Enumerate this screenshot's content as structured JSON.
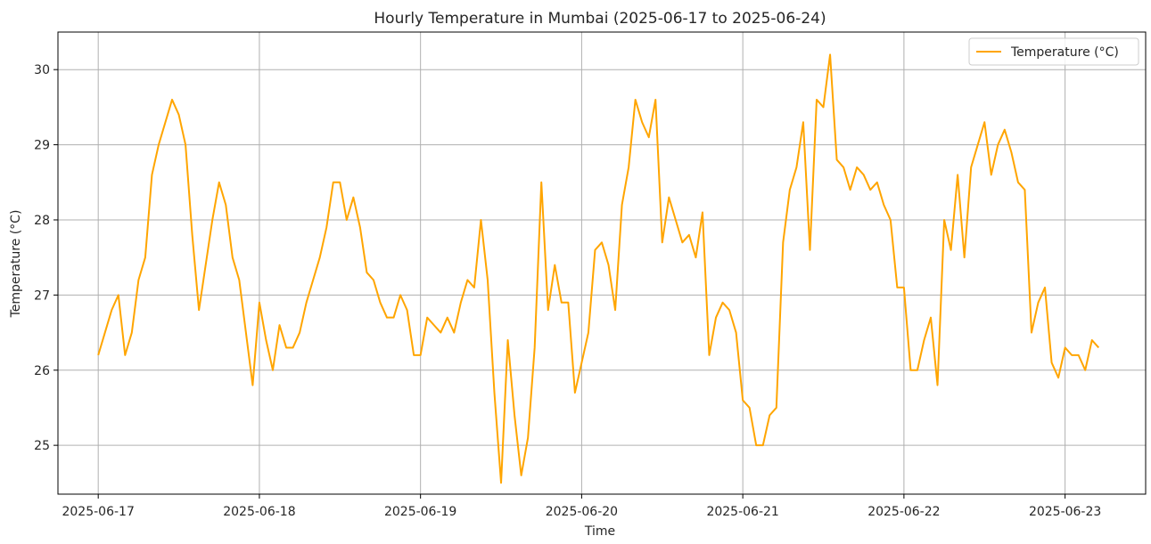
{
  "chart_data": {
    "type": "line",
    "title": "Hourly Temperature in Mumbai (2025-06-17 to 2025-06-24)",
    "xlabel": "Time",
    "ylabel": "Temperature (°C)",
    "x_tick_labels": [
      "2025-06-17",
      "2025-06-18",
      "2025-06-19",
      "2025-06-20",
      "2025-06-21",
      "2025-06-22",
      "2025-06-23"
    ],
    "y_ticks": [
      25,
      26,
      27,
      28,
      29,
      30
    ],
    "ylim": [
      24.35,
      30.5
    ],
    "xlim": [
      "2025-06-16 18:00",
      "2025-06-23 12:00"
    ],
    "x_step_hours": 1,
    "grid": true,
    "legend_position": "top-right",
    "series": [
      {
        "name": "Temperature (°C)",
        "color": "#ffa500",
        "start": "2025-06-17 00:00",
        "values": [
          26.2,
          26.5,
          26.8,
          27.0,
          26.2,
          26.5,
          27.2,
          27.5,
          28.6,
          29.0,
          29.3,
          29.6,
          29.4,
          29.0,
          27.8,
          26.8,
          27.4,
          28.0,
          28.5,
          28.2,
          27.5,
          27.2,
          26.5,
          25.8,
          26.9,
          26.4,
          26.0,
          26.6,
          26.3,
          26.3,
          26.5,
          26.9,
          27.2,
          27.5,
          27.9,
          28.5,
          28.5,
          28.0,
          28.3,
          27.9,
          27.3,
          27.2,
          26.9,
          26.7,
          26.7,
          27.0,
          26.8,
          26.2,
          26.2,
          26.7,
          26.6,
          26.5,
          26.7,
          26.5,
          26.9,
          27.2,
          27.1,
          28.0,
          27.2,
          25.7,
          24.5,
          26.4,
          25.4,
          24.6,
          25.1,
          26.3,
          28.5,
          26.8,
          27.4,
          26.9,
          26.9,
          25.7,
          26.1,
          26.5,
          27.6,
          27.7,
          27.4,
          26.8,
          28.2,
          28.7,
          29.6,
          29.3,
          29.1,
          29.6,
          27.7,
          28.3,
          28.0,
          27.7,
          27.8,
          27.5,
          28.1,
          26.2,
          26.7,
          26.9,
          26.8,
          26.5,
          25.6,
          25.5,
          25.0,
          25.0,
          25.4,
          25.5,
          27.7,
          28.4,
          28.7,
          29.3,
          27.6,
          29.6,
          29.5,
          30.2,
          28.8,
          28.7,
          28.4,
          28.7,
          28.6,
          28.4,
          28.5,
          28.2,
          28.0,
          27.1,
          27.1,
          26.0,
          26.0,
          26.4,
          26.7,
          25.8,
          28.0,
          27.6,
          28.6,
          27.5,
          28.7,
          29.0,
          29.3,
          28.6,
          29.0,
          29.2,
          28.9,
          28.5,
          28.4,
          26.5,
          26.9,
          27.1,
          26.1,
          25.9,
          26.3,
          26.2,
          26.2,
          26.0,
          26.4,
          26.3
        ]
      }
    ]
  }
}
